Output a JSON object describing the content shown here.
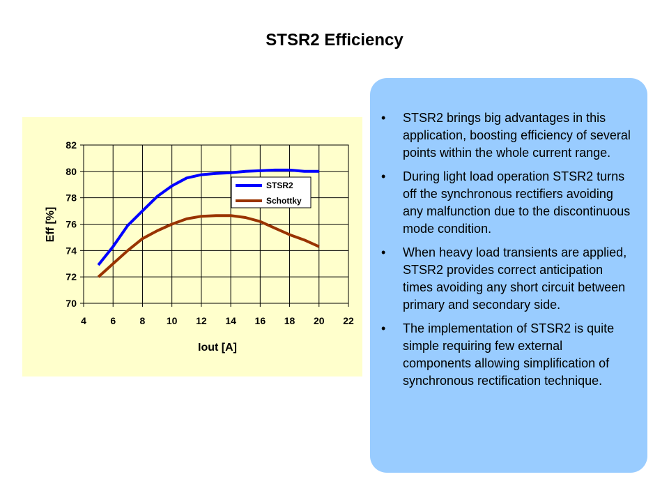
{
  "slide": {
    "title": "STSR2 Efficiency"
  },
  "chart_data": {
    "type": "line",
    "title": "",
    "xlabel": "Iout [A]",
    "ylabel": "Eff [%]",
    "xlim": [
      4,
      22
    ],
    "ylim": [
      70,
      82
    ],
    "xticks": [
      4,
      6,
      8,
      10,
      12,
      14,
      16,
      18,
      20,
      22
    ],
    "yticks": [
      70,
      72,
      74,
      76,
      78,
      80,
      82
    ],
    "grid": true,
    "legend_position": "top-right",
    "series": [
      {
        "name": "STSR2",
        "color": "#0000ff",
        "x": [
          5,
          6,
          7,
          8,
          9,
          10,
          11,
          12,
          13,
          14,
          15,
          16,
          17,
          18,
          19,
          20
        ],
        "y": [
          72.9,
          74.3,
          75.9,
          77.0,
          78.1,
          78.9,
          79.5,
          79.75,
          79.85,
          79.9,
          80.0,
          80.05,
          80.1,
          80.1,
          80.0,
          80.0
        ]
      },
      {
        "name": "Schottky",
        "color": "#993300",
        "x": [
          5,
          6,
          7,
          8,
          9,
          10,
          11,
          12,
          13,
          14,
          15,
          16,
          17,
          18,
          19,
          20
        ],
        "y": [
          72.0,
          73.0,
          74.0,
          74.9,
          75.5,
          76.0,
          76.4,
          76.6,
          76.65,
          76.65,
          76.5,
          76.2,
          75.7,
          75.2,
          74.8,
          74.3
        ]
      }
    ]
  },
  "bullets": [
    "STSR2 brings big advantages in this application, boosting efficiency of several points within the whole current range.",
    "During light load operation STSR2 turns off the synchronous rectifiers avoiding any malfunction due to the discontinuous mode condition.",
    "When heavy load transients are applied, STSR2 provides correct anticipation times avoiding any short circuit between primary and secondary side.",
    "The implementation of STSR2 is quite simple requiring few external components allowing simplification of synchronous rectification technique."
  ],
  "bullet_symbol": "•"
}
